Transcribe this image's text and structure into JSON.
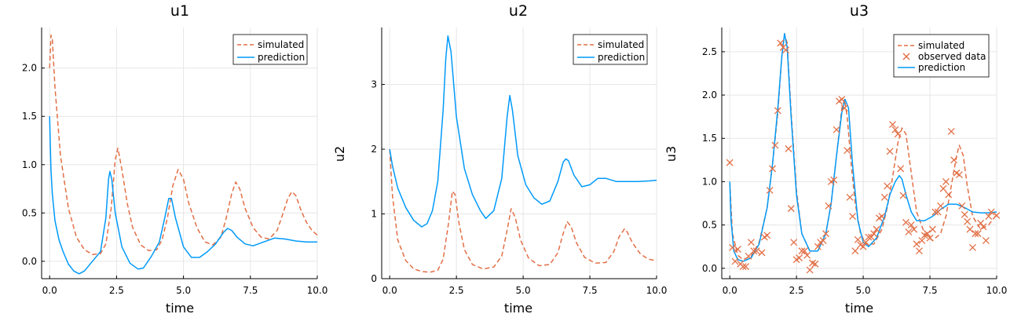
{
  "colors": {
    "simulated": "#e26f46",
    "prediction": "#009af9",
    "observed": "#e26f46",
    "grid": "#e6e6e6",
    "axis": "#000000"
  },
  "chart_data": [
    {
      "type": "line",
      "title": "u1",
      "xlabel": "time",
      "ylabel": "",
      "xlim": [
        -0.3,
        10.0
      ],
      "ylim": [
        -0.18,
        2.42
      ],
      "xticks": [
        0,
        2.5,
        5,
        7.5,
        10
      ],
      "xtick_labels": [
        "0.0",
        "2.5",
        "5.0",
        "7.5",
        "10.0"
      ],
      "yticks": [
        0,
        0.5,
        1,
        1.5,
        2
      ],
      "ytick_labels": [
        "0.0",
        "0.5",
        "1.0",
        "1.5",
        "2.0"
      ],
      "grid": true,
      "legend": {
        "position": "top-right",
        "entries": [
          "simulated",
          "prediction"
        ]
      },
      "series": [
        {
          "name": "simulated",
          "style": "dashed",
          "x": [
            0,
            0.05,
            0.1,
            0.2,
            0.4,
            0.7,
            1.0,
            1.3,
            1.6,
            1.9,
            2.1,
            2.3,
            2.45,
            2.55,
            2.7,
            2.9,
            3.1,
            3.4,
            3.7,
            4.0,
            4.2,
            4.4,
            4.6,
            4.8,
            5.0,
            5.2,
            5.5,
            5.8,
            6.1,
            6.4,
            6.6,
            6.8,
            6.95,
            7.1,
            7.3,
            7.6,
            7.9,
            8.2,
            8.5,
            8.7,
            8.9,
            9.05,
            9.2,
            9.4,
            9.6,
            9.8,
            10.0
          ],
          "y": [
            2.0,
            2.34,
            2.3,
            1.8,
            1.1,
            0.55,
            0.25,
            0.12,
            0.07,
            0.08,
            0.18,
            0.55,
            1.05,
            1.17,
            0.95,
            0.6,
            0.35,
            0.17,
            0.11,
            0.12,
            0.22,
            0.45,
            0.78,
            0.95,
            0.85,
            0.6,
            0.35,
            0.2,
            0.17,
            0.25,
            0.45,
            0.7,
            0.82,
            0.75,
            0.55,
            0.35,
            0.25,
            0.23,
            0.32,
            0.48,
            0.65,
            0.72,
            0.68,
            0.52,
            0.4,
            0.32,
            0.27
          ]
        },
        {
          "name": "prediction",
          "style": "solid",
          "x": [
            0,
            0.02,
            0.05,
            0.1,
            0.2,
            0.35,
            0.5,
            0.7,
            0.9,
            1.1,
            1.3,
            1.6,
            1.9,
            2.1,
            2.2,
            2.25,
            2.32,
            2.45,
            2.7,
            3.0,
            3.3,
            3.5,
            3.8,
            4.1,
            4.3,
            4.45,
            4.55,
            4.7,
            5.0,
            5.3,
            5.6,
            5.9,
            6.2,
            6.5,
            6.65,
            6.8,
            7.0,
            7.3,
            7.6,
            8.0,
            8.4,
            8.8,
            9.2,
            9.6,
            10.0
          ],
          "y": [
            1.5,
            1.25,
            0.95,
            0.7,
            0.42,
            0.22,
            0.1,
            -0.03,
            -0.1,
            -0.13,
            -0.1,
            0.0,
            0.1,
            0.45,
            0.85,
            0.93,
            0.85,
            0.5,
            0.15,
            -0.02,
            -0.08,
            -0.07,
            0.05,
            0.2,
            0.45,
            0.65,
            0.65,
            0.45,
            0.15,
            0.04,
            0.04,
            0.1,
            0.18,
            0.3,
            0.34,
            0.32,
            0.25,
            0.18,
            0.16,
            0.2,
            0.24,
            0.23,
            0.21,
            0.2,
            0.2
          ]
        }
      ]
    },
    {
      "type": "line",
      "title": "u2",
      "xlabel": "time",
      "ylabel": "u2",
      "xlim": [
        -0.3,
        10.0
      ],
      "ylim": [
        0,
        3.88
      ],
      "xticks": [
        0,
        2.5,
        5,
        7.5,
        10
      ],
      "xtick_labels": [
        "0.0",
        "2.5",
        "5.0",
        "7.5",
        "10.0"
      ],
      "yticks": [
        0,
        1,
        2,
        3
      ],
      "ytick_labels": [
        "0",
        "1",
        "2",
        "3"
      ],
      "grid": true,
      "legend": {
        "position": "top-right",
        "entries": [
          "simulated",
          "prediction"
        ]
      },
      "series": [
        {
          "name": "simulated",
          "style": "dashed",
          "x": [
            0,
            0.1,
            0.3,
            0.6,
            0.9,
            1.2,
            1.5,
            1.8,
            2.0,
            2.2,
            2.35,
            2.45,
            2.6,
            2.8,
            3.1,
            3.5,
            3.9,
            4.2,
            4.4,
            4.55,
            4.7,
            4.9,
            5.2,
            5.6,
            6.0,
            6.3,
            6.5,
            6.65,
            6.8,
            7.0,
            7.3,
            7.7,
            8.1,
            8.4,
            8.6,
            8.8,
            8.9,
            9.1,
            9.4,
            9.7,
            10.0
          ],
          "y": [
            2.0,
            1.3,
            0.6,
            0.28,
            0.15,
            0.11,
            0.1,
            0.13,
            0.3,
            0.85,
            1.35,
            1.3,
            0.85,
            0.45,
            0.22,
            0.15,
            0.18,
            0.35,
            0.75,
            1.08,
            0.95,
            0.6,
            0.32,
            0.2,
            0.22,
            0.4,
            0.7,
            0.88,
            0.8,
            0.55,
            0.33,
            0.24,
            0.25,
            0.42,
            0.65,
            0.77,
            0.72,
            0.55,
            0.38,
            0.3,
            0.28
          ]
        },
        {
          "name": "prediction",
          "style": "solid",
          "x": [
            0,
            0.1,
            0.3,
            0.6,
            0.9,
            1.2,
            1.4,
            1.6,
            1.8,
            2.0,
            2.1,
            2.18,
            2.3,
            2.5,
            2.8,
            3.1,
            3.4,
            3.6,
            3.9,
            4.2,
            4.4,
            4.5,
            4.6,
            4.8,
            5.1,
            5.4,
            5.7,
            6.0,
            6.3,
            6.5,
            6.6,
            6.7,
            6.9,
            7.2,
            7.5,
            7.8,
            8.1,
            8.5,
            8.9,
            9.3,
            9.7,
            10.0
          ],
          "y": [
            2.0,
            1.75,
            1.4,
            1.1,
            0.9,
            0.8,
            0.85,
            1.05,
            1.5,
            2.6,
            3.4,
            3.75,
            3.5,
            2.5,
            1.7,
            1.3,
            1.05,
            0.93,
            1.05,
            1.55,
            2.5,
            2.83,
            2.6,
            1.9,
            1.45,
            1.25,
            1.15,
            1.2,
            1.5,
            1.8,
            1.85,
            1.82,
            1.6,
            1.42,
            1.45,
            1.55,
            1.55,
            1.5,
            1.5,
            1.5,
            1.51,
            1.52
          ]
        }
      ]
    },
    {
      "type": "line",
      "title": "u3",
      "xlabel": "time",
      "ylabel": "u3",
      "xlim": [
        -0.3,
        10.0
      ],
      "ylim": [
        -0.12,
        2.78
      ],
      "xticks": [
        0,
        2.5,
        5,
        7.5,
        10
      ],
      "xtick_labels": [
        "0.0",
        "2.5",
        "5.0",
        "7.5",
        "10.0"
      ],
      "yticks": [
        0,
        0.5,
        1,
        1.5,
        2,
        2.5
      ],
      "ytick_labels": [
        "0.0",
        "0.5",
        "1.0",
        "1.5",
        "2.0",
        "2.5"
      ],
      "grid": true,
      "legend": {
        "position": "top-right",
        "entries": [
          "simulated",
          "observed data",
          "prediction"
        ]
      },
      "series": [
        {
          "name": "simulated",
          "style": "dashed",
          "x": [
            0,
            0.1,
            0.3,
            0.5,
            0.8,
            1.1,
            1.4,
            1.6,
            1.8,
            1.95,
            2.05,
            2.15,
            2.3,
            2.5,
            2.7,
            3.0,
            3.3,
            3.6,
            3.8,
            4.0,
            4.2,
            4.3,
            4.4,
            4.55,
            4.7,
            4.9,
            5.1,
            5.4,
            5.7,
            5.9,
            6.1,
            6.3,
            6.45,
            6.6,
            6.8,
            7.0,
            7.3,
            7.6,
            7.9,
            8.1,
            8.3,
            8.5,
            8.6,
            8.75,
            8.9,
            9.1,
            9.4,
            9.7,
            10.0
          ],
          "y": [
            1.0,
            0.4,
            0.15,
            0.1,
            0.14,
            0.3,
            0.7,
            1.2,
            1.8,
            2.45,
            2.7,
            2.6,
            1.8,
            0.9,
            0.4,
            0.2,
            0.2,
            0.4,
            0.75,
            1.3,
            1.85,
            1.95,
            1.75,
            1.2,
            0.75,
            0.4,
            0.28,
            0.28,
            0.45,
            0.7,
            1.05,
            1.45,
            1.62,
            1.55,
            1.1,
            0.65,
            0.4,
            0.32,
            0.4,
            0.6,
            0.95,
            1.3,
            1.42,
            1.3,
            0.95,
            0.6,
            0.45,
            0.5,
            0.62
          ]
        },
        {
          "name": "prediction",
          "style": "solid",
          "x": [
            0,
            0.05,
            0.15,
            0.3,
            0.5,
            0.8,
            1.1,
            1.4,
            1.6,
            1.8,
            1.95,
            2.05,
            2.15,
            2.3,
            2.5,
            2.7,
            3.0,
            3.3,
            3.6,
            3.8,
            4.0,
            4.2,
            4.32,
            4.45,
            4.6,
            4.8,
            5.0,
            5.2,
            5.5,
            5.8,
            6.0,
            6.2,
            6.35,
            6.45,
            6.6,
            6.8,
            7.0,
            7.3,
            7.6,
            7.9,
            8.2,
            8.5,
            8.8,
            9.1,
            9.4,
            9.7,
            10.0
          ],
          "y": [
            1.0,
            0.55,
            0.2,
            0.1,
            0.08,
            0.12,
            0.28,
            0.7,
            1.2,
            1.85,
            2.45,
            2.71,
            2.55,
            1.75,
            0.85,
            0.4,
            0.2,
            0.2,
            0.4,
            0.75,
            1.3,
            1.8,
            1.95,
            1.85,
            1.2,
            0.55,
            0.3,
            0.25,
            0.35,
            0.6,
            0.85,
            1.0,
            1.07,
            1.03,
            0.85,
            0.65,
            0.55,
            0.55,
            0.6,
            0.68,
            0.74,
            0.74,
            0.7,
            0.65,
            0.64,
            0.64,
            0.65
          ]
        },
        {
          "name": "observed data",
          "style": "markers",
          "x": [
            0.0,
            0.1,
            0.2,
            0.3,
            0.4,
            0.5,
            0.6,
            0.7,
            0.8,
            0.9,
            1.0,
            1.2,
            1.3,
            1.4,
            1.5,
            1.6,
            1.7,
            1.8,
            1.9,
            2.0,
            2.1,
            2.2,
            2.3,
            2.4,
            2.5,
            2.6,
            2.7,
            2.8,
            2.9,
            3.0,
            3.1,
            3.2,
            3.3,
            3.4,
            3.5,
            3.6,
            3.7,
            3.8,
            3.9,
            4.0,
            4.1,
            4.2,
            4.3,
            4.4,
            4.5,
            4.6,
            4.7,
            4.8,
            4.9,
            5.0,
            5.1,
            5.2,
            5.3,
            5.4,
            5.5,
            5.6,
            5.7,
            5.8,
            5.9,
            6.0,
            6.1,
            6.2,
            6.3,
            6.4,
            6.5,
            6.6,
            6.7,
            6.8,
            6.9,
            7.0,
            7.1,
            7.2,
            7.3,
            7.4,
            7.5,
            7.6,
            7.7,
            7.8,
            7.9,
            8.0,
            8.1,
            8.2,
            8.3,
            8.4,
            8.5,
            8.6,
            8.7,
            8.8,
            8.9,
            9.0,
            9.1,
            9.2,
            9.3,
            9.4,
            9.5,
            9.6,
            9.7,
            9.8,
            10.0
          ],
          "y": [
            1.22,
            0.24,
            0.08,
            0.22,
            0.05,
            0.02,
            0.02,
            0.14,
            0.3,
            0.2,
            0.2,
            0.18,
            0.36,
            0.38,
            0.9,
            1.15,
            1.42,
            1.82,
            2.6,
            2.55,
            2.52,
            1.38,
            0.69,
            0.3,
            0.1,
            0.12,
            0.2,
            0.2,
            0.15,
            -0.02,
            0.06,
            0.05,
            0.25,
            0.3,
            0.32,
            0.4,
            0.72,
            1.0,
            1.02,
            1.6,
            1.93,
            1.95,
            1.85,
            1.36,
            0.82,
            0.6,
            0.2,
            0.33,
            0.27,
            0.25,
            0.3,
            0.36,
            0.36,
            0.4,
            0.45,
            0.58,
            0.6,
            0.82,
            0.95,
            1.35,
            1.66,
            1.6,
            1.55,
            1.15,
            0.84,
            0.53,
            0.42,
            0.5,
            0.45,
            0.28,
            0.2,
            0.32,
            0.38,
            0.4,
            0.35,
            0.45,
            0.65,
            0.65,
            0.72,
            0.92,
            1.0,
            0.85,
            1.58,
            1.25,
            1.1,
            1.08,
            0.72,
            0.62,
            0.54,
            0.45,
            0.24,
            0.4,
            0.4,
            0.52,
            0.48,
            0.32,
            0.6,
            0.65,
            0.61
          ]
        }
      ]
    }
  ]
}
